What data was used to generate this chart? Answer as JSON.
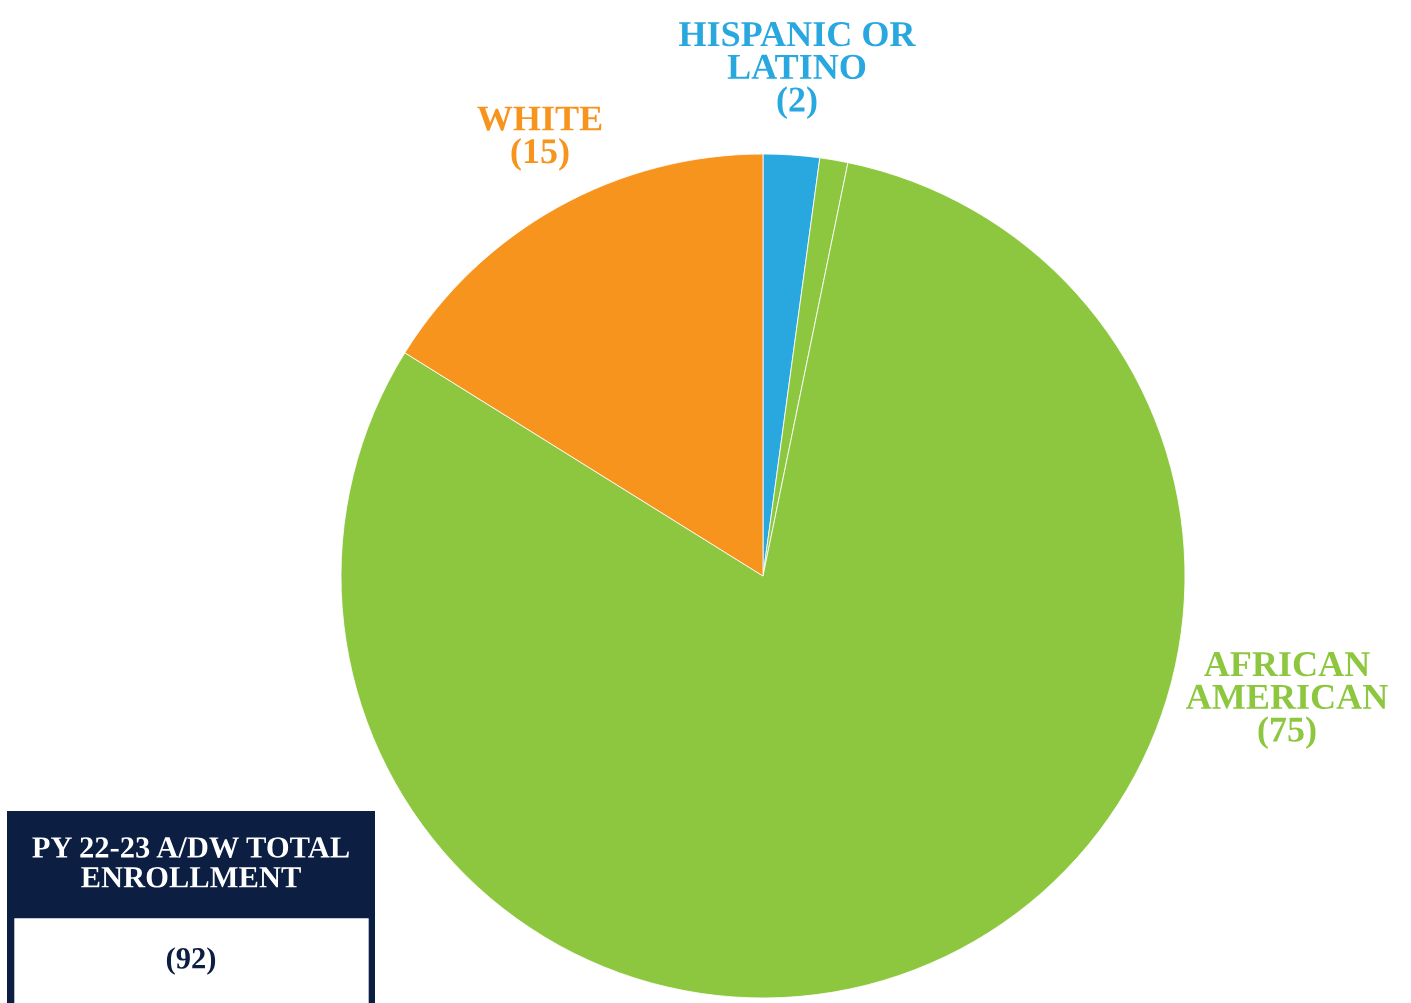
{
  "chart_data": {
    "type": "pie",
    "categories": [
      "HISPANIC OR\nLATINO",
      null,
      "AFRICAN\nAMERICAN",
      "WHITE"
    ],
    "values": [
      2,
      1,
      75,
      15
    ],
    "value_labels": [
      "(2)",
      null,
      "(75)",
      "(15)"
    ],
    "colors": [
      "#29a8e0",
      "#8dc63f",
      "#8dc63f",
      "#f7941d"
    ],
    "annotations": [
      "PY 22-23 A/DW TOTAL\nENROLLMENT",
      "(92)"
    ],
    "legend": false
  }
}
